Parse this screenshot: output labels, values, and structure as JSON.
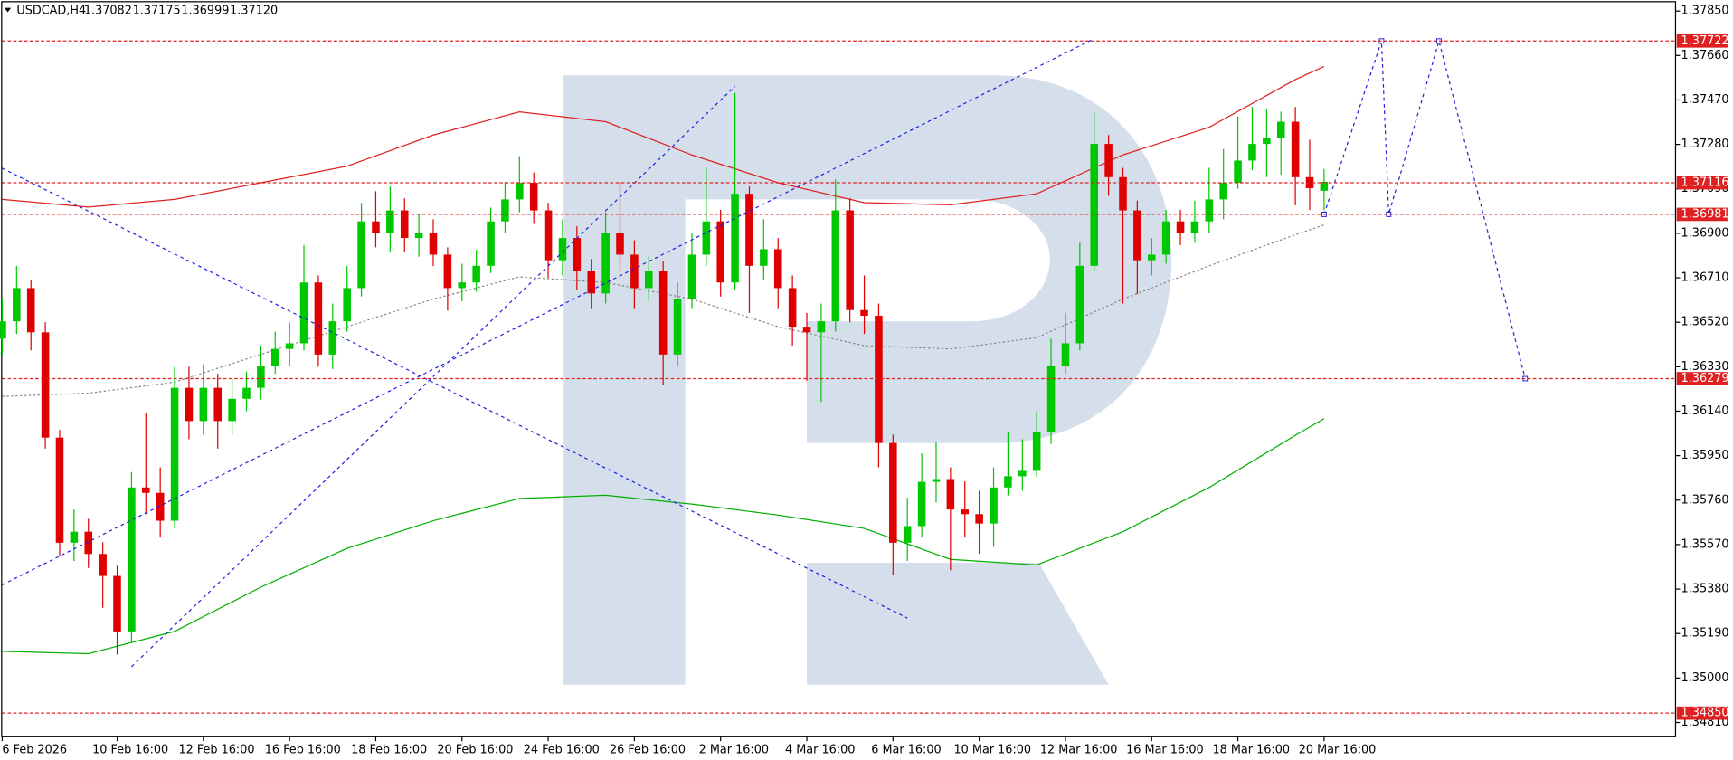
{
  "chart_data": {
    "type": "candlestick",
    "header": {
      "symbol": "USDCAD,H4",
      "values": [
        1.37082,
        1.37175,
        1.36999,
        1.3712
      ],
      "value_labels": [
        "1.37082",
        "1.37175",
        "1.36999",
        "1.37120"
      ]
    },
    "categories": [
      "6 Feb 2026",
      null,
      null,
      null,
      null,
      null,
      null,
      null,
      "10 Feb 16:00",
      null,
      null,
      null,
      null,
      null,
      "12 Feb 16:00",
      null,
      null,
      null,
      null,
      null,
      "16 Feb 16:00",
      null,
      null,
      null,
      null,
      null,
      "18 Feb 16:00",
      null,
      null,
      null,
      null,
      null,
      "20 Feb 16:00",
      null,
      null,
      null,
      null,
      null,
      "24 Feb 16:00",
      null,
      null,
      null,
      null,
      null,
      "26 Feb 16:00",
      null,
      null,
      null,
      null,
      null,
      "2 Mar 16:00",
      null,
      null,
      null,
      null,
      null,
      "4 Mar 16:00",
      null,
      null,
      null,
      null,
      null,
      "6 Mar 16:00",
      null,
      null,
      null,
      null,
      null,
      "10 Mar 16:00",
      null,
      null,
      null,
      null,
      null,
      "12 Mar 16:00",
      null,
      null,
      null,
      null,
      null,
      "16 Mar 16:00",
      null,
      null,
      null,
      null,
      null,
      "18 Mar 16:00",
      null,
      null,
      null,
      null,
      null,
      "20 Mar 16:00"
    ],
    "open": [
      1.3645,
      1.36524,
      1.36666,
      1.36477,
      1.36027,
      1.35578,
      1.35625,
      1.3553,
      1.35436,
      1.35199,
      1.35814,
      1.35791,
      1.35672,
      1.3624,
      1.36098,
      1.3624,
      1.36098,
      1.36193,
      1.3624,
      1.36335,
      1.36406,
      1.3643,
      1.3669,
      1.36382,
      1.36524,
      1.36666,
      1.36951,
      1.36903,
      1.36998,
      1.3688,
      1.36903,
      1.36809,
      1.36666,
      1.3669,
      1.36761,
      1.36951,
      1.37045,
      1.37116,
      1.36998,
      1.36785,
      1.3688,
      1.36738,
      1.36643,
      1.36903,
      1.36809,
      1.36666,
      1.36738,
      1.36382,
      1.36619,
      1.36809,
      1.36951,
      1.3669,
      1.37069,
      1.36761,
      1.36832,
      1.36666,
      1.36501,
      1.36477,
      1.36524,
      1.36998,
      1.36572,
      1.36548,
      1.36004,
      1.35578,
      1.35649,
      1.35838,
      1.3585,
      1.3572,
      1.357,
      1.3566,
      1.35814,
      1.35862,
      1.35885,
      1.36051,
      1.36335,
      1.3643,
      1.36761,
      1.37282,
      1.3714,
      1.36998,
      1.36785,
      1.36809,
      1.36951,
      1.36903,
      1.36951,
      1.37045,
      1.37116,
      1.37211,
      1.37282,
      1.37306,
      1.37377,
      1.3714,
      1.37082
    ],
    "high": [
      1.3662,
      1.3676,
      1.367,
      1.3652,
      1.3606,
      1.3572,
      1.3568,
      1.3558,
      1.3548,
      1.3588,
      1.3613,
      1.359,
      1.3633,
      1.3633,
      1.3634,
      1.363,
      1.3628,
      1.3631,
      1.3642,
      1.3648,
      1.3652,
      1.3685,
      1.3672,
      1.366,
      1.3676,
      1.3703,
      1.3708,
      1.371,
      1.3705,
      1.3698,
      1.3696,
      1.3684,
      1.3677,
      1.3683,
      1.3701,
      1.3712,
      1.3723,
      1.3716,
      1.3703,
      1.3696,
      1.3693,
      1.3679,
      1.3699,
      1.3712,
      1.3687,
      1.368,
      1.3678,
      1.3669,
      1.369,
      1.3718,
      1.37,
      1.375,
      1.371,
      1.3696,
      1.3688,
      1.3672,
      1.3656,
      1.366,
      1.3713,
      1.3705,
      1.3672,
      1.366,
      1.3604,
      1.3577,
      1.3596,
      1.3601,
      1.359,
      1.3584,
      1.358,
      1.359,
      1.3605,
      1.3602,
      1.3614,
      1.3645,
      1.3656,
      1.3686,
      1.3742,
      1.3732,
      1.3718,
      1.3704,
      1.3688,
      1.37,
      1.37,
      1.3704,
      1.3718,
      1.3726,
      1.374,
      1.3744,
      1.3743,
      1.3742,
      1.3744,
      1.373,
      1.37175
    ],
    "low": [
      1.3638,
      1.3647,
      1.364,
      1.3598,
      1.3552,
      1.355,
      1.3547,
      1.353,
      1.351,
      1.3515,
      1.357,
      1.356,
      1.3564,
      1.3602,
      1.3604,
      1.3598,
      1.3604,
      1.3614,
      1.3619,
      1.363,
      1.3633,
      1.364,
      1.3633,
      1.3632,
      1.3648,
      1.3663,
      1.3684,
      1.3682,
      1.3682,
      1.368,
      1.3676,
      1.3657,
      1.3661,
      1.3665,
      1.3673,
      1.369,
      1.3699,
      1.3694,
      1.3671,
      1.3672,
      1.3666,
      1.3658,
      1.366,
      1.3674,
      1.3658,
      1.3661,
      1.3625,
      1.3633,
      1.3658,
      1.3676,
      1.3663,
      1.3666,
      1.3656,
      1.367,
      1.3658,
      1.3642,
      1.3627,
      1.3618,
      1.3648,
      1.3652,
      1.3647,
      1.359,
      1.3544,
      1.355,
      1.356,
      1.3575,
      1.3546,
      1.356,
      1.3553,
      1.3556,
      1.3578,
      1.358,
      1.3586,
      1.36,
      1.363,
      1.364,
      1.3674,
      1.3706,
      1.366,
      1.3664,
      1.3672,
      1.3677,
      1.3685,
      1.3686,
      1.369,
      1.3696,
      1.3709,
      1.3717,
      1.3714,
      1.3715,
      1.3702,
      1.37,
      1.36999
    ],
    "close": [
      1.36524,
      1.36666,
      1.36477,
      1.36027,
      1.35578,
      1.35625,
      1.3553,
      1.35436,
      1.35199,
      1.35814,
      1.35791,
      1.35672,
      1.3624,
      1.36098,
      1.3624,
      1.36098,
      1.36193,
      1.3624,
      1.36335,
      1.36406,
      1.3643,
      1.3669,
      1.36382,
      1.36524,
      1.36666,
      1.36951,
      1.36903,
      1.36998,
      1.3688,
      1.36903,
      1.36809,
      1.36666,
      1.3669,
      1.36761,
      1.36951,
      1.37045,
      1.37116,
      1.36998,
      1.36785,
      1.3688,
      1.36738,
      1.36643,
      1.36903,
      1.36809,
      1.36666,
      1.36738,
      1.36382,
      1.36619,
      1.36809,
      1.36951,
      1.3669,
      1.37069,
      1.36761,
      1.36832,
      1.36666,
      1.36501,
      1.36477,
      1.36524,
      1.36998,
      1.36572,
      1.36548,
      1.36004,
      1.35578,
      1.35649,
      1.35838,
      1.3585,
      1.3572,
      1.357,
      1.3566,
      1.35814,
      1.35862,
      1.35885,
      1.36051,
      1.36335,
      1.3643,
      1.36761,
      1.37282,
      1.3714,
      1.36998,
      1.36785,
      1.36809,
      1.36951,
      1.36903,
      1.36951,
      1.37045,
      1.37116,
      1.37211,
      1.37282,
      1.37306,
      1.37377,
      1.3714,
      1.37093,
      1.3712
    ],
    "up_color": "#00c800",
    "down_color": "#e00000",
    "ylim": [
      1.34749,
      1.37897
    ],
    "yticks": [
      {
        "value": 1.3785,
        "label": "1.37850"
      },
      {
        "value": 1.3766,
        "label": "1.37660"
      },
      {
        "value": 1.3747,
        "label": "1.37470"
      },
      {
        "value": 1.3728,
        "label": "1.37280"
      },
      {
        "value": 1.3709,
        "label": "1.37090"
      },
      {
        "value": 1.369,
        "label": "1.36900"
      },
      {
        "value": 1.3671,
        "label": "1.36710"
      },
      {
        "value": 1.3652,
        "label": "1.36520"
      },
      {
        "value": 1.3633,
        "label": "1.36330"
      },
      {
        "value": 1.3614,
        "label": "1.36140"
      },
      {
        "value": 1.3595,
        "label": "1.35950"
      },
      {
        "value": 1.3576,
        "label": "1.35760"
      },
      {
        "value": 1.3557,
        "label": "1.35570"
      },
      {
        "value": 1.3538,
        "label": "1.35380"
      },
      {
        "value": 1.3519,
        "label": "1.35190"
      },
      {
        "value": 1.35,
        "label": "1.35000"
      },
      {
        "value": 1.3481,
        "label": "1.34810"
      }
    ],
    "levels": [
      1.37722,
      1.37116,
      1.36981,
      1.36279,
      {
        "value": 1.3485,
        "label": "1.34850"
      }
    ],
    "level_color": "#e02020",
    "indicators": [
      {
        "color": "#e02020",
        "style": "solid",
        "x": [
          0,
          6,
          12,
          18,
          24,
          30,
          36,
          42,
          48,
          54,
          60,
          66,
          72,
          78,
          84,
          90,
          92
        ],
        "values": [
          1.37045,
          1.37012,
          1.37045,
          1.37116,
          1.37187,
          1.3732,
          1.37419,
          1.37377,
          1.37235,
          1.37116,
          1.37031,
          1.37022,
          1.37069,
          1.37235,
          1.37353,
          1.37557,
          1.37613
        ]
      },
      {
        "color": "#888888",
        "style": "dotted",
        "x": [
          0,
          6,
          12,
          18,
          24,
          30,
          36,
          42,
          48,
          54,
          60,
          66,
          72,
          78,
          84,
          90,
          92
        ],
        "values": [
          1.36203,
          1.36217,
          1.36264,
          1.36383,
          1.36501,
          1.36619,
          1.36714,
          1.3669,
          1.36619,
          1.36501,
          1.3642,
          1.36406,
          1.36454,
          1.36619,
          1.36761,
          1.36894,
          1.36936
        ]
      },
      {
        "color": "#00b000",
        "style": "solid",
        "x": [
          0,
          6,
          12,
          18,
          24,
          30,
          36,
          42,
          48,
          54,
          60,
          66,
          72,
          78,
          84,
          90,
          92
        ],
        "values": [
          1.35114,
          1.35104,
          1.35199,
          1.35388,
          1.35554,
          1.35672,
          1.35767,
          1.35781,
          1.35743,
          1.35696,
          1.35639,
          1.35507,
          1.35483,
          1.35625,
          1.35814,
          1.36037,
          1.36108
        ]
      }
    ],
    "overlays": [
      {
        "color": "#2020e0",
        "markers": false,
        "x": [
          0,
          76
        ],
        "values": [
          1.35398,
          1.37732
        ]
      },
      {
        "color": "#2020e0",
        "markers": false,
        "x": [
          0,
          63
        ],
        "values": [
          1.37178,
          1.35256
        ]
      },
      {
        "color": "#2020e0",
        "markers": false,
        "x": [
          9,
          51
        ],
        "values": [
          1.35048,
          1.37528
        ]
      },
      {
        "color": "#2020e0",
        "markers": true,
        "x": [
          92,
          96,
          96.5,
          100,
          106
        ],
        "values": [
          1.36981,
          1.37722,
          1.36981,
          1.37722,
          1.36279
        ]
      }
    ]
  }
}
